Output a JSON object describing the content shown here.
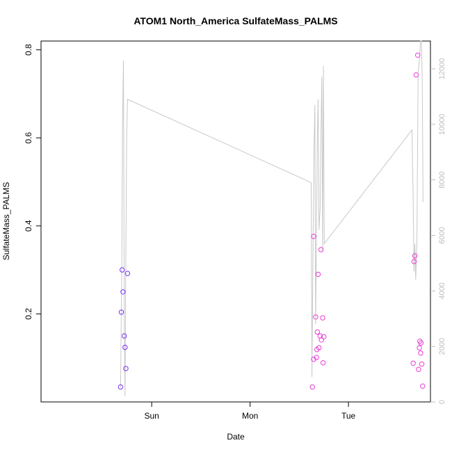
{
  "chart_data": {
    "type": "scatter",
    "title": "ATOM1 North_America SulfateMass_PALMS",
    "xlabel": "Date",
    "ylabel": "SulfateMass_PALMS",
    "x_ticks": [
      {
        "label": "Sun",
        "value": 24
      },
      {
        "label": "Mon",
        "value": 48
      },
      {
        "label": "Tue",
        "value": 72
      }
    ],
    "xlim": [
      -3,
      92
    ],
    "ylim": [
      0.0,
      0.82
    ],
    "y_ticks": [
      0.2,
      0.4,
      0.6,
      0.8
    ],
    "ylim_right": [
      0,
      13000
    ],
    "y_ticks_right": [
      0,
      2000,
      4000,
      6000,
      8000,
      10000,
      12000
    ],
    "x_unit": "hours after Saturday 00:00",
    "series": [
      {
        "color": "#7b2ff7",
        "points": [
          {
            "x": 16.4,
            "y": 0.034
          },
          {
            "x": 16.6,
            "y": 0.204
          },
          {
            "x": 16.8,
            "y": 0.3
          },
          {
            "x": 17.0,
            "y": 0.25
          },
          {
            "x": 17.3,
            "y": 0.15
          },
          {
            "x": 17.5,
            "y": 0.124
          },
          {
            "x": 17.7,
            "y": 0.076
          },
          {
            "x": 18.1,
            "y": 0.292
          }
        ]
      },
      {
        "color": "#e83bd4",
        "points": [
          {
            "x": 63.2,
            "y": 0.034
          },
          {
            "x": 63.5,
            "y": 0.097
          },
          {
            "x": 63.5,
            "y": 0.376
          },
          {
            "x": 64.0,
            "y": 0.193
          },
          {
            "x": 64.2,
            "y": 0.101
          },
          {
            "x": 64.3,
            "y": 0.119
          },
          {
            "x": 64.4,
            "y": 0.159
          },
          {
            "x": 64.6,
            "y": 0.29
          },
          {
            "x": 64.8,
            "y": 0.123
          },
          {
            "x": 65.1,
            "y": 0.15
          },
          {
            "x": 65.3,
            "y": 0.346
          },
          {
            "x": 65.4,
            "y": 0.141
          },
          {
            "x": 65.7,
            "y": 0.191
          },
          {
            "x": 65.8,
            "y": 0.089
          },
          {
            "x": 66.0,
            "y": 0.148
          },
          {
            "x": 87.8,
            "y": 0.088
          },
          {
            "x": 88.0,
            "y": 0.319
          },
          {
            "x": 88.2,
            "y": 0.332
          },
          {
            "x": 88.5,
            "y": 0.743
          },
          {
            "x": 88.9,
            "y": 0.788
          },
          {
            "x": 89.1,
            "y": 0.074
          },
          {
            "x": 89.3,
            "y": 0.123
          },
          {
            "x": 89.4,
            "y": 0.138
          },
          {
            "x": 89.6,
            "y": 0.111
          },
          {
            "x": 89.7,
            "y": 0.134
          },
          {
            "x": 89.9,
            "y": 0.086
          },
          {
            "x": 90.1,
            "y": 0.036
          }
        ]
      },
      {
        "color": "#c8c8c8",
        "axis": "right",
        "kind": "line",
        "points": [
          {
            "x": 16.4,
            "y": 500
          },
          {
            "x": 16.7,
            "y": 4800
          },
          {
            "x": 16.9,
            "y": 10200
          },
          {
            "x": 17.1,
            "y": 12300
          },
          {
            "x": 17.3,
            "y": 3000
          },
          {
            "x": 17.5,
            "y": 200
          },
          {
            "x": 17.7,
            "y": 5400
          },
          {
            "x": 17.9,
            "y": 9600
          },
          {
            "x": 18.1,
            "y": 10900
          },
          {
            "x": 62.9,
            "y": 7900
          },
          {
            "x": 63.1,
            "y": 900
          },
          {
            "x": 63.3,
            "y": 4600
          },
          {
            "x": 63.6,
            "y": 9200
          },
          {
            "x": 63.8,
            "y": 10700
          },
          {
            "x": 64.0,
            "y": 2800
          },
          {
            "x": 64.2,
            "y": 6000
          },
          {
            "x": 64.4,
            "y": 9400
          },
          {
            "x": 64.6,
            "y": 10900
          },
          {
            "x": 64.8,
            "y": 6200
          },
          {
            "x": 65.1,
            "y": 7000
          },
          {
            "x": 65.3,
            "y": 9700
          },
          {
            "x": 65.5,
            "y": 11700
          },
          {
            "x": 65.7,
            "y": 5400
          },
          {
            "x": 65.9,
            "y": 12100
          },
          {
            "x": 66.1,
            "y": 5700
          },
          {
            "x": 87.5,
            "y": 9800
          },
          {
            "x": 87.8,
            "y": 7200
          },
          {
            "x": 88.0,
            "y": 4700
          },
          {
            "x": 88.2,
            "y": 5700
          },
          {
            "x": 88.4,
            "y": 4400
          },
          {
            "x": 88.7,
            "y": 5600
          },
          {
            "x": 89.0,
            "y": 11900
          },
          {
            "x": 89.3,
            "y": 12300
          },
          {
            "x": 89.6,
            "y": 13000
          },
          {
            "x": 89.8,
            "y": 13000
          },
          {
            "x": 90.0,
            "y": 11600
          },
          {
            "x": 90.2,
            "y": 7200
          }
        ]
      }
    ]
  }
}
